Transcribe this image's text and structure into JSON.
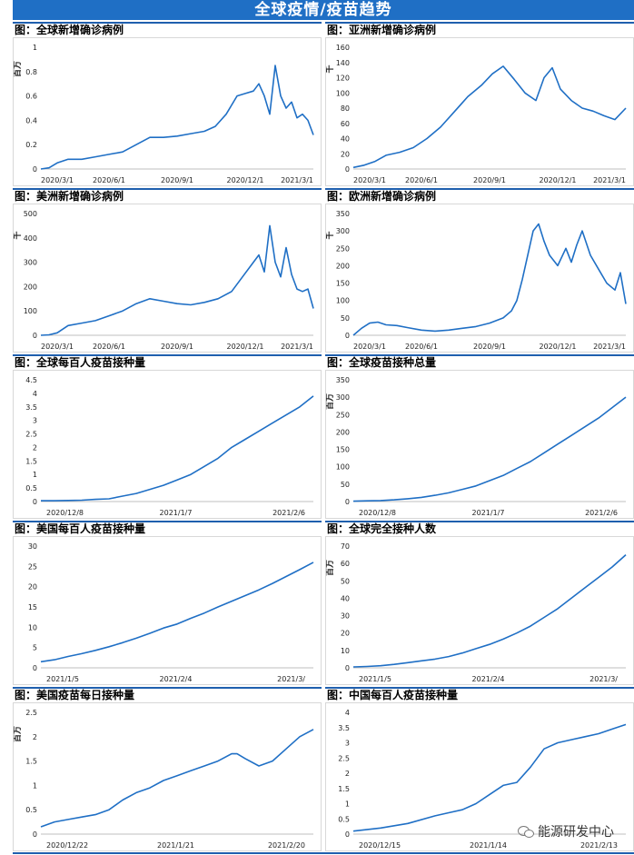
{
  "header": {
    "title": "全球疫情/疫苗趋势"
  },
  "watermark": {
    "text": "能源研发中心",
    "icon": "wechat-icon"
  },
  "colors": {
    "banner": "#1f6fc5",
    "line": "#1f6fc5",
    "rule": "#1f5fae"
  },
  "chart_data": [
    {
      "type": "line",
      "title": "图：全球新增确诊病例",
      "ylabel": "百万",
      "ylim": [
        0,
        1
      ],
      "yticks": [
        "0",
        "0.2",
        "0.4",
        "0.6",
        "0.8",
        "1"
      ],
      "xticks": [
        "2020/3/1",
        "2020/6/1",
        "2020/9/1",
        "2020/12/1",
        "2021/3/1"
      ],
      "x": [
        0,
        0.03,
        0.06,
        0.1,
        0.15,
        0.2,
        0.25,
        0.3,
        0.35,
        0.4,
        0.45,
        0.5,
        0.55,
        0.6,
        0.64,
        0.68,
        0.72,
        0.75,
        0.78,
        0.8,
        0.82,
        0.84,
        0.86,
        0.88,
        0.9,
        0.92,
        0.94,
        0.96,
        0.98,
        1.0
      ],
      "series": [
        {
          "values": [
            0,
            0.01,
            0.05,
            0.08,
            0.08,
            0.1,
            0.12,
            0.14,
            0.2,
            0.26,
            0.26,
            0.27,
            0.29,
            0.31,
            0.35,
            0.45,
            0.6,
            0.62,
            0.64,
            0.7,
            0.6,
            0.45,
            0.85,
            0.6,
            0.5,
            0.55,
            0.42,
            0.45,
            0.4,
            0.28
          ]
        }
      ]
    },
    {
      "type": "line",
      "title": "图：亚洲新增确诊病例",
      "ylabel": "千",
      "ylim": [
        0,
        160
      ],
      "yticks": [
        "0",
        "20",
        "40",
        "60",
        "80",
        "100",
        "120",
        "140",
        "160"
      ],
      "xticks": [
        "2020/3/1",
        "2020/6/1",
        "2020/9/1",
        "2020/12/1",
        "2021/3/1"
      ],
      "x": [
        0,
        0.04,
        0.08,
        0.12,
        0.17,
        0.22,
        0.27,
        0.32,
        0.37,
        0.42,
        0.47,
        0.51,
        0.55,
        0.59,
        0.63,
        0.67,
        0.7,
        0.73,
        0.76,
        0.8,
        0.84,
        0.88,
        0.92,
        0.96,
        1.0
      ],
      "series": [
        {
          "values": [
            2,
            5,
            10,
            18,
            22,
            28,
            40,
            55,
            75,
            95,
            110,
            125,
            135,
            118,
            100,
            90,
            120,
            133,
            105,
            90,
            80,
            76,
            70,
            65,
            80
          ]
        }
      ]
    },
    {
      "type": "line",
      "title": "图：美洲新增确诊病例",
      "ylabel": "千",
      "ylim": [
        0,
        500
      ],
      "yticks": [
        "0",
        "100",
        "200",
        "300",
        "400",
        "500"
      ],
      "xticks": [
        "2020/3/1",
        "2020/6/1",
        "2020/9/1",
        "2020/12/1",
        "2021/3/1"
      ],
      "x": [
        0,
        0.03,
        0.06,
        0.1,
        0.15,
        0.2,
        0.25,
        0.3,
        0.35,
        0.4,
        0.45,
        0.5,
        0.55,
        0.6,
        0.65,
        0.7,
        0.74,
        0.78,
        0.8,
        0.82,
        0.84,
        0.86,
        0.88,
        0.9,
        0.92,
        0.94,
        0.96,
        0.98,
        1.0
      ],
      "series": [
        {
          "values": [
            0,
            2,
            10,
            40,
            50,
            60,
            80,
            100,
            130,
            150,
            140,
            130,
            125,
            135,
            150,
            180,
            240,
            300,
            330,
            260,
            450,
            300,
            240,
            360,
            250,
            190,
            180,
            190,
            110
          ]
        }
      ]
    },
    {
      "type": "line",
      "title": "图：欧洲新增确诊病例",
      "ylabel": "千",
      "ylim": [
        0,
        350
      ],
      "yticks": [
        "0",
        "50",
        "100",
        "150",
        "200",
        "250",
        "300",
        "350"
      ],
      "xticks": [
        "2020/3/1",
        "2020/6/1",
        "2020/9/1",
        "2020/12/1",
        "2021/3/1"
      ],
      "x": [
        0,
        0.03,
        0.06,
        0.09,
        0.12,
        0.16,
        0.2,
        0.25,
        0.3,
        0.35,
        0.4,
        0.45,
        0.5,
        0.55,
        0.58,
        0.6,
        0.62,
        0.64,
        0.66,
        0.68,
        0.7,
        0.72,
        0.75,
        0.78,
        0.8,
        0.82,
        0.84,
        0.87,
        0.9,
        0.93,
        0.96,
        0.98,
        1.0
      ],
      "series": [
        {
          "values": [
            0,
            20,
            35,
            38,
            30,
            28,
            22,
            15,
            12,
            15,
            20,
            25,
            35,
            50,
            70,
            100,
            160,
            230,
            300,
            320,
            270,
            230,
            200,
            250,
            210,
            260,
            300,
            230,
            190,
            150,
            130,
            180,
            90
          ]
        }
      ]
    },
    {
      "type": "line",
      "title": "图：全球每百人疫苗接种量",
      "ylabel": "",
      "ylim": [
        0,
        4.5
      ],
      "yticks": [
        "0",
        "0.5",
        "1",
        "1.5",
        "2",
        "2.5",
        "3",
        "3.5",
        "4",
        "4.5"
      ],
      "xticks": [
        "2020/12/8",
        "2021/1/7",
        "2021/2/6"
      ],
      "x": [
        0,
        0.05,
        0.1,
        0.15,
        0.2,
        0.25,
        0.3,
        0.35,
        0.4,
        0.45,
        0.5,
        0.55,
        0.6,
        0.65,
        0.7,
        0.75,
        0.8,
        0.85,
        0.9,
        0.95,
        1.0
      ],
      "series": [
        {
          "values": [
            0.03,
            0.03,
            0.04,
            0.05,
            0.08,
            0.1,
            0.2,
            0.3,
            0.45,
            0.6,
            0.8,
            1.0,
            1.3,
            1.6,
            2.0,
            2.3,
            2.6,
            2.9,
            3.2,
            3.5,
            3.9
          ]
        }
      ]
    },
    {
      "type": "line",
      "title": "图：全球疫苗接种总量",
      "ylabel": "百万",
      "ylim": [
        0,
        350
      ],
      "yticks": [
        "0",
        "50",
        "100",
        "150",
        "200",
        "250",
        "300",
        "350"
      ],
      "xticks": [
        "2020/12/8",
        "2021/1/7",
        "2021/2/6"
      ],
      "x": [
        0,
        0.05,
        0.1,
        0.15,
        0.2,
        0.25,
        0.3,
        0.35,
        0.4,
        0.45,
        0.5,
        0.55,
        0.6,
        0.65,
        0.7,
        0.75,
        0.8,
        0.85,
        0.9,
        0.95,
        1.0
      ],
      "series": [
        {
          "values": [
            1,
            2,
            3,
            5,
            8,
            12,
            18,
            25,
            35,
            45,
            60,
            75,
            95,
            115,
            140,
            165,
            190,
            215,
            240,
            270,
            300
          ]
        }
      ]
    },
    {
      "type": "line",
      "title": "图：美国每百人疫苗接种量",
      "ylabel": "",
      "ylim": [
        0,
        30
      ],
      "yticks": [
        "0",
        "5",
        "10",
        "15",
        "20",
        "25",
        "30"
      ],
      "xticks": [
        "2021/1/5",
        "2021/2/4",
        "2021/3/"
      ],
      "x": [
        0,
        0.05,
        0.1,
        0.15,
        0.2,
        0.25,
        0.3,
        0.35,
        0.4,
        0.45,
        0.5,
        0.55,
        0.6,
        0.65,
        0.7,
        0.75,
        0.8,
        0.85,
        0.9,
        0.95,
        1.0
      ],
      "series": [
        {
          "values": [
            1.5,
            2,
            2.8,
            3.5,
            4.3,
            5.2,
            6.2,
            7.3,
            8.5,
            9.8,
            10.8,
            12.2,
            13.5,
            15,
            16.4,
            17.8,
            19.2,
            20.8,
            22.5,
            24.2,
            26
          ]
        }
      ]
    },
    {
      "type": "line",
      "title": "图：全球完全接种人数",
      "ylabel": "百万",
      "ylim": [
        0,
        70
      ],
      "yticks": [
        "0",
        "10",
        "20",
        "30",
        "40",
        "50",
        "60",
        "70"
      ],
      "xticks": [
        "2021/1/5",
        "2021/2/4",
        "2021/3/"
      ],
      "x": [
        0,
        0.05,
        0.1,
        0.15,
        0.2,
        0.25,
        0.3,
        0.35,
        0.4,
        0.45,
        0.5,
        0.55,
        0.6,
        0.65,
        0.7,
        0.75,
        0.8,
        0.85,
        0.9,
        0.95,
        1.0
      ],
      "series": [
        {
          "values": [
            0.5,
            0.8,
            1.2,
            2,
            3,
            4,
            5,
            6.5,
            8.5,
            11,
            13.5,
            16.5,
            20,
            24,
            29,
            34,
            40,
            46,
            52,
            58,
            65
          ]
        }
      ]
    },
    {
      "type": "line",
      "title": "图：美国疫苗每日接种量",
      "ylabel": "百万",
      "ylim": [
        0,
        2.5
      ],
      "yticks": [
        "0",
        "0.5",
        "1",
        "1.5",
        "2",
        "2.5"
      ],
      "xticks": [
        "2020/12/22",
        "2021/1/21",
        "2021/2/20"
      ],
      "x": [
        0,
        0.05,
        0.1,
        0.15,
        0.2,
        0.25,
        0.3,
        0.35,
        0.4,
        0.45,
        0.5,
        0.55,
        0.6,
        0.65,
        0.7,
        0.72,
        0.75,
        0.8,
        0.85,
        0.9,
        0.95,
        1.0
      ],
      "series": [
        {
          "values": [
            0.15,
            0.25,
            0.3,
            0.35,
            0.4,
            0.5,
            0.7,
            0.85,
            0.95,
            1.1,
            1.2,
            1.3,
            1.4,
            1.5,
            1.65,
            1.65,
            1.55,
            1.4,
            1.5,
            1.75,
            2.0,
            2.15
          ]
        }
      ]
    },
    {
      "type": "line",
      "title": "图：中国每百人疫苗接种量",
      "ylabel": "",
      "ylim": [
        0,
        4
      ],
      "yticks": [
        "0",
        "0.5",
        "1",
        "1.5",
        "2",
        "2.5",
        "3",
        "3.5",
        "4"
      ],
      "xticks": [
        "2020/12/15",
        "2021/1/14",
        "2021/2/13"
      ],
      "x": [
        0,
        0.1,
        0.2,
        0.3,
        0.35,
        0.4,
        0.45,
        0.5,
        0.55,
        0.6,
        0.65,
        0.7,
        0.75,
        0.8,
        0.85,
        0.9,
        0.95,
        1.0
      ],
      "series": [
        {
          "values": [
            0.1,
            0.2,
            0.35,
            0.6,
            0.7,
            0.8,
            1.0,
            1.3,
            1.6,
            1.7,
            2.2,
            2.8,
            3.0,
            3.1,
            3.2,
            3.3,
            3.45,
            3.6
          ]
        }
      ]
    }
  ]
}
